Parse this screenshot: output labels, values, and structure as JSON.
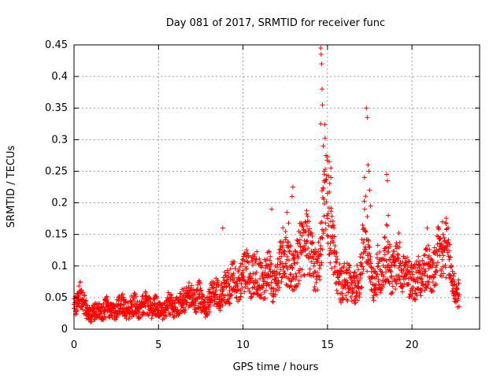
{
  "chart_data": {
    "type": "scatter",
    "title": "Day 081 of 2017, SRMTID for receiver func",
    "xlabel": "GPS time / hours",
    "ylabel": "SRMTID / TECUs",
    "xlim": [
      0,
      24
    ],
    "ylim": [
      0,
      0.45
    ],
    "x_ticks": [
      0,
      5,
      10,
      15,
      20
    ],
    "x_tick_labels": [
      "0",
      "5",
      "10",
      "15",
      "20"
    ],
    "y_ticks": [
      0,
      0.05,
      0.1,
      0.15,
      0.2,
      0.25,
      0.3,
      0.35,
      0.4,
      0.45
    ],
    "y_tick_labels": [
      "0",
      "0.05",
      "0.1",
      "0.15",
      "0.2",
      "0.25",
      "0.3",
      "0.35",
      "0.4",
      "0.45"
    ],
    "grid": true,
    "marker": "+",
    "color": "#ff0000",
    "series": [
      {
        "name": "SRMTID",
        "x": [
          0.0,
          0.2,
          0.4,
          0.6,
          0.8,
          1.0,
          1.2,
          1.4,
          1.6,
          1.8,
          2.0,
          2.2,
          2.4,
          2.6,
          2.8,
          3.0,
          3.2,
          3.4,
          3.6,
          3.8,
          4.0,
          4.2,
          4.4,
          4.6,
          4.8,
          5.0,
          5.2,
          5.4,
          5.6,
          5.8,
          6.0,
          6.2,
          6.4,
          6.6,
          6.8,
          7.0,
          7.2,
          7.4,
          7.6,
          7.8,
          8.0,
          8.2,
          8.4,
          8.6,
          8.8,
          9.0,
          9.2,
          9.4,
          9.6,
          9.8,
          10.0,
          10.2,
          10.4,
          10.6,
          10.8,
          11.0,
          11.2,
          11.4,
          11.6,
          11.8,
          12.0,
          12.2,
          12.4,
          12.6,
          12.8,
          13.0,
          13.2,
          13.4,
          13.6,
          13.8,
          14.0,
          14.2,
          14.4,
          14.6,
          14.8,
          15.0,
          15.2,
          15.4,
          15.6,
          15.8,
          16.0,
          16.2,
          16.4,
          16.6,
          16.8,
          17.0,
          17.2,
          17.4,
          17.6,
          17.8,
          18.0,
          18.2,
          18.4,
          18.6,
          18.8,
          19.0,
          19.2,
          19.4,
          19.6,
          19.8,
          20.0,
          20.2,
          20.4,
          20.6,
          20.8,
          21.0,
          21.2,
          21.4,
          21.6,
          21.8,
          22.0,
          22.2,
          22.4,
          22.6,
          22.8
        ],
        "y": [
          0.033,
          0.045,
          0.058,
          0.041,
          0.026,
          0.021,
          0.028,
          0.034,
          0.024,
          0.031,
          0.038,
          0.029,
          0.025,
          0.037,
          0.045,
          0.032,
          0.028,
          0.036,
          0.041,
          0.03,
          0.035,
          0.042,
          0.038,
          0.031,
          0.04,
          0.03,
          0.026,
          0.034,
          0.042,
          0.036,
          0.032,
          0.041,
          0.048,
          0.045,
          0.052,
          0.049,
          0.044,
          0.056,
          0.038,
          0.032,
          0.046,
          0.058,
          0.062,
          0.048,
          0.055,
          0.072,
          0.061,
          0.085,
          0.068,
          0.078,
          0.082,
          0.095,
          0.074,
          0.088,
          0.09,
          0.08,
          0.076,
          0.085,
          0.095,
          0.06,
          0.088,
          0.102,
          0.12,
          0.11,
          0.098,
          0.083,
          0.105,
          0.13,
          0.125,
          0.14,
          0.115,
          0.1,
          0.09,
          0.132,
          0.25,
          0.215,
          0.146,
          0.12,
          0.082,
          0.07,
          0.078,
          0.074,
          0.07,
          0.066,
          0.075,
          0.088,
          0.19,
          0.11,
          0.082,
          0.07,
          0.1,
          0.086,
          0.118,
          0.122,
          0.084,
          0.1,
          0.112,
          0.094,
          0.088,
          0.08,
          0.08,
          0.075,
          0.09,
          0.086,
          0.092,
          0.102,
          0.084,
          0.098,
          0.125,
          0.11,
          0.132,
          0.11,
          0.076,
          0.058,
          0.055
        ],
        "spikes": [
          {
            "x": 8.8,
            "y": 0.16
          },
          {
            "x": 11.7,
            "y": 0.19
          },
          {
            "x": 12.6,
            "y": 0.185
          },
          {
            "x": 12.7,
            "y": 0.168
          },
          {
            "x": 12.9,
            "y": 0.21
          },
          {
            "x": 12.95,
            "y": 0.225
          },
          {
            "x": 14.6,
            "y": 0.445
          },
          {
            "x": 14.62,
            "y": 0.435
          },
          {
            "x": 14.65,
            "y": 0.42
          },
          {
            "x": 14.68,
            "y": 0.38
          },
          {
            "x": 14.7,
            "y": 0.355
          },
          {
            "x": 14.6,
            "y": 0.325
          },
          {
            "x": 14.75,
            "y": 0.29
          },
          {
            "x": 14.8,
            "y": 0.235
          },
          {
            "x": 15.1,
            "y": 0.265
          },
          {
            "x": 15.2,
            "y": 0.255
          },
          {
            "x": 15.2,
            "y": 0.24
          },
          {
            "x": 17.3,
            "y": 0.35
          },
          {
            "x": 17.35,
            "y": 0.335
          },
          {
            "x": 17.4,
            "y": 0.26
          },
          {
            "x": 17.45,
            "y": 0.25
          },
          {
            "x": 17.5,
            "y": 0.22
          },
          {
            "x": 17.55,
            "y": 0.195
          },
          {
            "x": 18.5,
            "y": 0.245
          },
          {
            "x": 18.55,
            "y": 0.235
          },
          {
            "x": 18.6,
            "y": 0.18
          },
          {
            "x": 20.9,
            "y": 0.16
          },
          {
            "x": 21.8,
            "y": 0.17
          }
        ]
      }
    ]
  }
}
